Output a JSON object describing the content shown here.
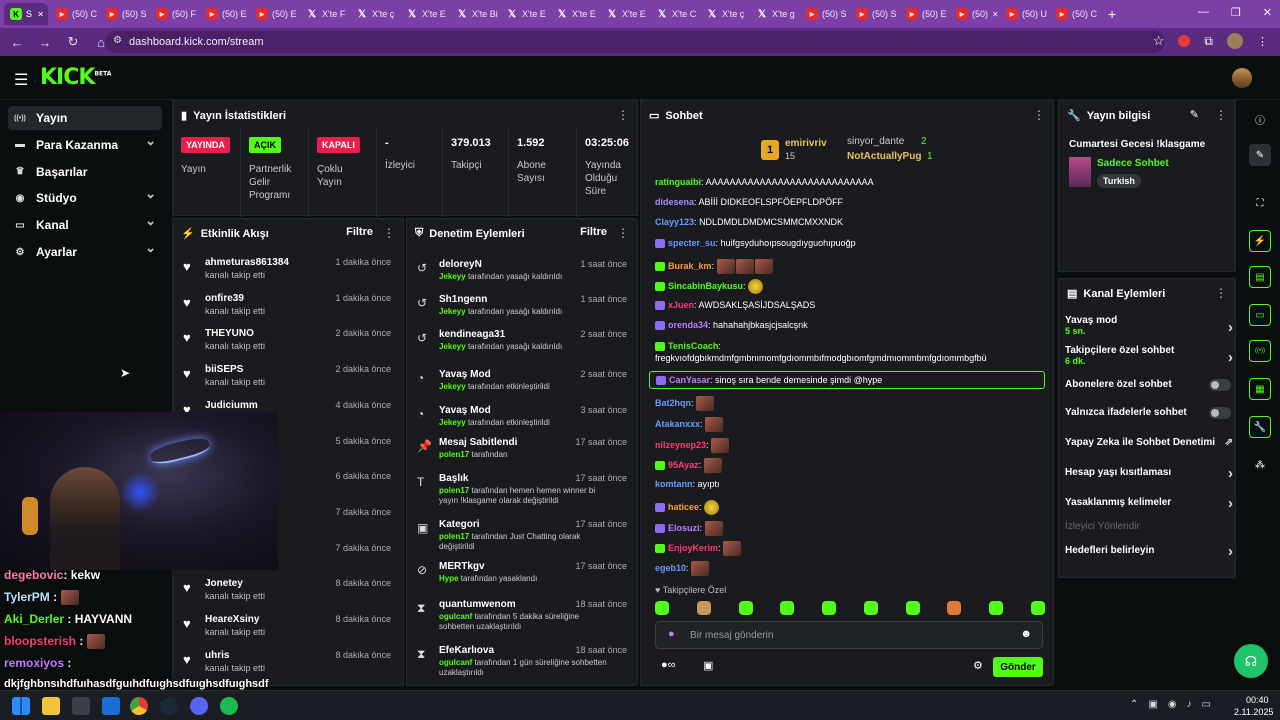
{
  "browser": {
    "tabs": [
      {
        "icon": "kick",
        "label": "S"
      },
      {
        "icon": "yt",
        "label": "(50) C"
      },
      {
        "icon": "yt",
        "label": "(50) S"
      },
      {
        "icon": "yt",
        "label": "(50) F"
      },
      {
        "icon": "yt",
        "label": "(50) E"
      },
      {
        "icon": "yt",
        "label": "(50) E"
      },
      {
        "icon": "x",
        "label": "X'te F"
      },
      {
        "icon": "x",
        "label": "X'te ç"
      },
      {
        "icon": "x",
        "label": "X'te E"
      },
      {
        "icon": "x",
        "label": "X'te Bi"
      },
      {
        "icon": "x",
        "label": "X'te E"
      },
      {
        "icon": "x",
        "label": "X'te E"
      },
      {
        "icon": "x",
        "label": "X'te E"
      },
      {
        "icon": "x",
        "label": "X'te C"
      },
      {
        "icon": "x",
        "label": "X'te ç"
      },
      {
        "icon": "x",
        "label": "X'te g"
      },
      {
        "icon": "yt",
        "label": "(50) S"
      },
      {
        "icon": "yt",
        "label": "(50) S"
      },
      {
        "icon": "yt",
        "label": "(50) E"
      },
      {
        "icon": "yt",
        "label": "(50)"
      },
      {
        "icon": "yt",
        "label": "(50) U"
      },
      {
        "icon": "yt",
        "label": "(50) C"
      }
    ],
    "new_tab": "+",
    "url": "dashboard.kick.com/stream"
  },
  "header": {
    "logo": "KICK",
    "logo_sup": "BETA"
  },
  "sidebar": [
    {
      "label": "Yayın",
      "icon": "stream-icon",
      "active": true
    },
    {
      "label": "Para Kazanma",
      "icon": "money-icon",
      "chevron": true
    },
    {
      "label": "Başarılar",
      "icon": "trophy-icon"
    },
    {
      "label": "Stüdyo",
      "icon": "studio-icon",
      "chevron": true
    },
    {
      "label": "Kanal",
      "icon": "channel-icon",
      "chevron": true
    },
    {
      "label": "Ayarlar",
      "icon": "gear-icon",
      "chevron": true
    }
  ],
  "stats": {
    "title": "Yayın İstatistikleri",
    "items": [
      {
        "badge": "YAYINDA",
        "badge_color": "#e91e4a",
        "label": "Yayın"
      },
      {
        "badge": "AÇIK",
        "badge_color": "#53fc18",
        "label": "Partnerlik Gelir Programı"
      },
      {
        "badge": "KAPALI",
        "badge_color": "#e91e4a",
        "label": "Çoklu Yayın"
      },
      {
        "value": "-",
        "label": "İzleyici"
      },
      {
        "value": "379.013",
        "label": "Takipçi"
      },
      {
        "value": "1.592",
        "label": "Abone Sayısı"
      },
      {
        "value": "03:25:06",
        "label": "Yayında Olduğu Süre"
      }
    ]
  },
  "activity": {
    "title": "Etkinlik Akışı",
    "filter": "Filtre",
    "items": [
      {
        "name": "ahmeturas861384",
        "sub": "kanalı takip etti",
        "time": "1 dakika önce"
      },
      {
        "name": "onfire39",
        "sub": "kanalı takip etti",
        "time": "1 dakika önce"
      },
      {
        "name": "THEYUNO",
        "sub": "kanalı takip etti",
        "time": "2 dakika önce"
      },
      {
        "name": "biiSEPS",
        "sub": "kanalı takip etti",
        "time": "2 dakika önce"
      },
      {
        "name": "Judiciumm",
        "sub": "",
        "time": "4 dakika önce"
      },
      {
        "name": "",
        "sub": "",
        "time": "5 dakika önce"
      },
      {
        "name": "",
        "sub": "",
        "time": "6 dakika önce"
      },
      {
        "name": "",
        "sub": "",
        "time": "7 dakika önce"
      },
      {
        "name": "",
        "sub": "",
        "time": "7 dakika önce"
      },
      {
        "name": "Jonetey",
        "sub": "kanalı takip etti",
        "time": "8 dakika önce"
      },
      {
        "name": "HeareXsiny",
        "sub": "kanalı takip etti",
        "time": "8 dakika önce"
      },
      {
        "name": "uhris",
        "sub": "kanalı takip etti",
        "time": "8 dakika önce"
      }
    ]
  },
  "moderation": {
    "title": "Denetim Eylemleri",
    "filter": "Filtre",
    "items": [
      {
        "name": "deloreyN",
        "by": "Jekeyy",
        "rest": "tarafından yasağı kaldırıldı",
        "time": "1 saat önce",
        "icon": "undo"
      },
      {
        "name": "Sh1ngenn",
        "by": "Jekeyy",
        "rest": "tarafından yasağı kaldırıldı",
        "time": "1 saat önce",
        "icon": "undo"
      },
      {
        "name": "kendineaga31",
        "by": "Jekeyy",
        "rest": "tarafından yasağı kaldırıldı",
        "time": "2 saat önce",
        "icon": "undo"
      },
      {
        "name": "Yavaş Mod",
        "by": "Jekeyy",
        "rest": "tarafından etkinleştirildi",
        "time": "2 saat önce",
        "icon": "slow"
      },
      {
        "name": "Yavaş Mod",
        "by": "Jekeyy",
        "rest": "tarafından etkinleştirildi",
        "time": "3 saat önce",
        "icon": "slow"
      },
      {
        "name": "Mesaj Sabitlendi",
        "by": "polen17",
        "rest": "tarafından",
        "time": "17 saat önce",
        "icon": "pin"
      },
      {
        "name": "Başlık",
        "by": "polen17",
        "rest": "tarafından hemen hemen winner bi yayın !klasgame olarak değiştirildi",
        "time": "17 saat önce",
        "icon": "text"
      },
      {
        "name": "Kategori",
        "by": "polen17",
        "rest": "tarafından Just Chatting olarak değiştirildi",
        "time": "17 saat önce",
        "icon": "cat"
      },
      {
        "name": "MERTkgv",
        "by": "Hype",
        "rest": "tarafından yasaklandı",
        "time": "17 saat önce",
        "icon": "ban"
      },
      {
        "name": "quantumwenom",
        "by": "ogulcanf",
        "rest": "tarafından 5 dakika süreliğine sohbetten uzaklaştırıldı",
        "time": "18 saat önce",
        "icon": "hourglass"
      },
      {
        "name": "EfeKarlıova",
        "by": "ogulcanf",
        "rest": "tarafından 1 gün süreliğine sohbetten uzaklaştırıldı",
        "time": "18 saat önce",
        "icon": "hourglass"
      }
    ]
  },
  "chat": {
    "title": "Sohbet",
    "top": {
      "first": "emirivriv",
      "first_count": "15",
      "second": "sinyor_dante",
      "second_count": "2",
      "third": "NotActuallyPug",
      "third_count": "1"
    },
    "messages": [
      {
        "user": "ratinguaibi",
        "color": "#53fc18",
        "text": "AAAAAAAAAAAAAAAAAAAAAAAAAAAA"
      },
      {
        "user": "didesena",
        "color": "#a88cff",
        "text": "ABİİİ DIDKEOFLSPFÖEPFLDPÖFF"
      },
      {
        "user": "Clayy123",
        "color": "#6b9cff",
        "text": "NDLDMDLDMDMCSMMCMXXNDK"
      },
      {
        "user": "specter_su",
        "color": "#6b9cff",
        "text": "huifgsyduhoıpsougdıyguohıpuoğp"
      },
      {
        "user": "Burak_km",
        "color": "#ff9a3c",
        "text": ""
      },
      {
        "user": "SincabinBaykusu",
        "color": "#53fc18",
        "text": ""
      },
      {
        "user": "xJuen",
        "color": "#ff3b7a",
        "text": "AWDSAKLŞASİJDSALŞADS"
      },
      {
        "user": "orenda34",
        "color": "#c07bff",
        "text": "hahahahjbkasjcjsalcşnk"
      },
      {
        "user": "TenisCoach",
        "color": "#53fc18",
        "text": ""
      },
      {
        "user": "",
        "color": "#fff",
        "text": "fregkvıofdgbıkmdmfgmbnımomfgdıommbıfmodgbıomfgmdmıommbmfgdıommbgfbü"
      },
      {
        "user": "CanYasar",
        "color": "#c07bff",
        "text": "sinoş sıra bende demesinde şimdi @hype"
      },
      {
        "user": "Bat2hqn",
        "color": "#6b9cff",
        "text": ""
      },
      {
        "user": "Atakanxxx",
        "color": "#6b9cff",
        "text": ""
      },
      {
        "user": "nilzeynep23",
        "color": "#ff3b7a",
        "text": ""
      },
      {
        "user": "95Ayaz",
        "color": "#ff3b7a",
        "text": ""
      },
      {
        "user": "komtann",
        "color": "#6b9cff",
        "text": "ayıptı"
      },
      {
        "user": "haticee",
        "color": "#ff9a3c",
        "text": ""
      },
      {
        "user": "Elosuzi",
        "color": "#c07bff",
        "text": ""
      },
      {
        "user": "EnjoyKerim",
        "color": "#ff3b7a",
        "text": ""
      },
      {
        "user": "egeb10",
        "color": "#6b9cff",
        "text": ""
      }
    ],
    "followers_only": "Takipçilere Özel",
    "placeholder": "Bir mesaj gönderin",
    "send": "Gönder"
  },
  "stream_info": {
    "title": "Yayın bilgisi",
    "stream_title": "Cumartesi Gecesi !klasgame",
    "category": "Sadece Sohbet",
    "tag": "Turkish"
  },
  "channel_actions": {
    "title": "Kanal Eylemleri",
    "items": [
      {
        "label": "Yavaş mod",
        "sub": "5 sn.",
        "control": "arrow"
      },
      {
        "label": "Takipçilere özel sohbet",
        "sub": "6 dk.",
        "control": "arrow"
      },
      {
        "label": "Abonelere özel sohbet",
        "control": "toggle"
      },
      {
        "label": "Yalnızca ifadelerle sohbet",
        "control": "toggle"
      },
      {
        "label": "Yapay Zeka ile Sohbet Denetimi",
        "control": "ext"
      },
      {
        "label": "Hesap yaşı kısıtlaması",
        "control": "arrow"
      },
      {
        "label": "Yasaklanmış kelimeler",
        "control": "arrow"
      },
      {
        "label": "İzleyici Yönlendir",
        "control": "none",
        "disabled": true
      },
      {
        "label": "Hedefleri belirleyin",
        "control": "arrow"
      }
    ]
  },
  "overlay_chat": [
    {
      "user": "degebovic",
      "color": "#ff7ab0",
      "text": ": kekw"
    },
    {
      "user": "TylerPM",
      "color": "#bfe3ff",
      "text": " :"
    },
    {
      "user": "Aki_Derler",
      "color": "#53fc18",
      "text": " : HAYVANN"
    },
    {
      "user": "bloopsterish",
      "color": "#ff3b7a",
      "text": " :"
    },
    {
      "user": "remoxiyos",
      "color": "#c07bff",
      "text": " :"
    },
    {
      "user": "",
      "color": "#fff",
      "text": "dkjfghbnsıhdfuıhasdfguıhdfuıghsdfuıghsdfuıghsdf"
    }
  ],
  "taskbar": {
    "time": "00:40",
    "date": "2.11.2025"
  }
}
